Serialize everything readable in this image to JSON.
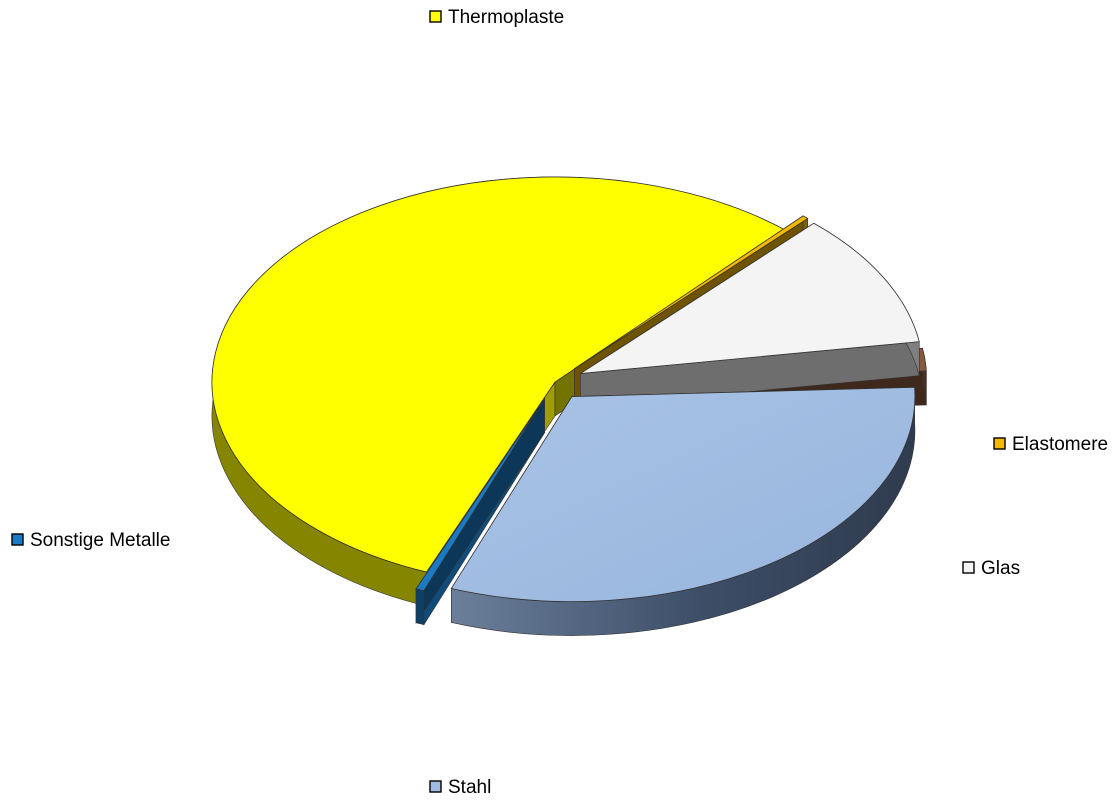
{
  "chart_data": {
    "type": "pie",
    "three_d": true,
    "exploded": true,
    "legend": "labels beside each slice",
    "categories": [
      "Thermoplaste",
      "Stahl",
      "Sonstige Metalle",
      "Glas",
      "Elastomere"
    ],
    "values": [
      56.5,
      32.0,
      0.4,
      10.8,
      0.3
    ],
    "unlabeled_values": [
      1.8
    ],
    "colors": [
      "#ffff00",
      "#9fbbe0",
      "#1a7ac4",
      "#f4f4f4",
      "#f5b800"
    ],
    "unlabeled_colors": [
      "#8a5a3f"
    ]
  }
}
